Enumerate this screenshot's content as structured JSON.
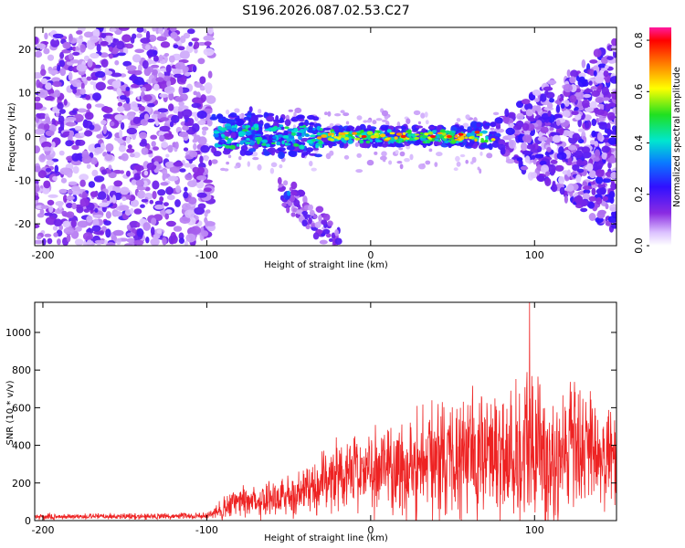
{
  "title": "S196.2026.087.02.53.C27",
  "colors": {
    "snr_line": "#ee2222",
    "frame": "#000000"
  },
  "chart_data": [
    {
      "type": "heatmap",
      "name": "spectrogram",
      "xlabel": "Height of straight line (km)",
      "ylabel": "Frequency (Hz)",
      "xlim": [
        -205,
        150
      ],
      "ylim": [
        -25,
        25
      ],
      "xticks": [
        -200,
        -100,
        0,
        100
      ],
      "yticks": [
        -20,
        -10,
        0,
        10,
        20
      ],
      "xtick_labels": [
        "-200",
        "-100",
        "0",
        "100"
      ],
      "ytick_labels": [
        "-20",
        "-10",
        "0",
        "10",
        "20"
      ],
      "colorbar": {
        "label": "Normalized spectral amplitude",
        "range": [
          0.0,
          0.85
        ],
        "ticks": [
          0.0,
          0.2,
          0.4,
          0.6,
          0.8
        ],
        "tick_labels": [
          "0.0",
          "0.2",
          "0.4",
          "0.6",
          "0.8"
        ]
      },
      "features": {
        "noise_region_left_km": [
          -205,
          -97
        ],
        "signal_band_freq_hz": 0,
        "signal_band_km": [
          -97,
          80
        ],
        "branch_start_km": -55,
        "branch_end_km": -22,
        "branch_freq_hz": [
          -12,
          -23
        ],
        "noise_region_right_km": [
          75,
          150
        ]
      }
    },
    {
      "type": "line",
      "name": "snr",
      "xlabel": "Height of straight line (km)",
      "ylabel": "SNR (10 * v/v)",
      "xlim": [
        -205,
        150
      ],
      "ylim": [
        0,
        1160
      ],
      "xticks": [
        -200,
        -100,
        0,
        100
      ],
      "yticks": [
        0,
        200,
        400,
        600,
        800,
        1000
      ],
      "xtick_labels": [
        "-200",
        "-100",
        "0",
        "100"
      ],
      "ytick_labels": [
        "0",
        "200",
        "400",
        "600",
        "800",
        "1000"
      ],
      "envelope": {
        "x": [
          -205,
          -100,
          -90,
          -80,
          -60,
          -40,
          -30,
          -20,
          0,
          20,
          40,
          60,
          80,
          95,
          110,
          130,
          150
        ],
        "mean": [
          20,
          25,
          60,
          100,
          120,
          150,
          200,
          250,
          270,
          280,
          330,
          350,
          360,
          380,
          350,
          380,
          300
        ],
        "amp": [
          15,
          15,
          60,
          80,
          100,
          130,
          150,
          180,
          200,
          280,
          300,
          320,
          350,
          420,
          360,
          320,
          250
        ]
      },
      "peak_x": 97,
      "peak_y": 1160
    }
  ]
}
